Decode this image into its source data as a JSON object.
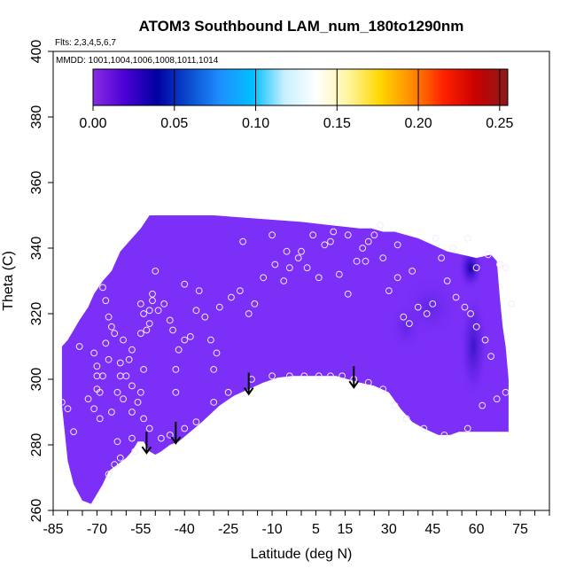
{
  "chart_data": {
    "type": "heatmap",
    "title": "ATOM3 Southbound LAM_num_180to1290nm",
    "subtitle_flights": "Flts: 2,3,4,5,6,7",
    "subtitle_dates": "MMDD: 1001,1004,1006,1008,1011,1014",
    "xlabel": "Latitude (deg N)",
    "ylabel": "Theta (C)",
    "xlim": [
      -85,
      85
    ],
    "ylim": [
      260,
      400
    ],
    "x_tick_labels": [
      "-85",
      "-70",
      "-55",
      "-40",
      "-25",
      "-10",
      "5",
      "15",
      "30",
      "45",
      "60",
      "75"
    ],
    "x_tick_values": [
      -85,
      -70,
      -55,
      -40,
      -25,
      -10,
      5,
      15,
      30,
      45,
      60,
      75
    ],
    "y_tick_labels": [
      "260",
      "280",
      "300",
      "320",
      "340",
      "360",
      "380",
      "400"
    ],
    "y_tick_values": [
      260,
      280,
      300,
      320,
      340,
      360,
      380,
      400
    ],
    "colorbar": {
      "range": [
        0,
        0.255
      ],
      "tick_labels": [
        "0.00",
        "0.05",
        "0.10",
        "0.15",
        "0.20",
        "0.25"
      ],
      "tick_values": [
        0,
        0.05,
        0.1,
        0.15,
        0.2,
        0.25
      ],
      "colors": [
        "#8a2be2",
        "#4b00d6",
        "#0000a0",
        "#0a4cd0",
        "#1e90ff",
        "#00bfff",
        "#c8f0ff",
        "#ffffff",
        "#fff5a0",
        "#ffd700",
        "#ff8c00",
        "#ff2000",
        "#c80000",
        "#8b1a1a"
      ]
    },
    "field_fill_color": "#7b2ff7",
    "field_boundary_lower": [
      [
        -82,
        292
      ],
      [
        -80,
        275
      ],
      [
        -78,
        268
      ],
      [
        -75,
        263
      ],
      [
        -72,
        262
      ],
      [
        -70,
        265
      ],
      [
        -68,
        268
      ],
      [
        -66,
        272
      ],
      [
        -63,
        274
      ],
      [
        -60,
        276
      ],
      [
        -58,
        278
      ],
      [
        -56,
        281
      ],
      [
        -54,
        281
      ],
      [
        -52,
        278
      ],
      [
        -50,
        277
      ],
      [
        -48,
        278
      ],
      [
        -45,
        280
      ],
      [
        -42,
        281
      ],
      [
        -38,
        284
      ],
      [
        -34,
        287
      ],
      [
        -28,
        292
      ],
      [
        -23,
        295
      ],
      [
        -18,
        297
      ],
      [
        -13,
        299
      ],
      [
        -8,
        300.5
      ],
      [
        -3,
        301
      ],
      [
        2,
        301
      ],
      [
        7,
        301
      ],
      [
        12,
        301
      ],
      [
        16,
        300
      ],
      [
        20,
        299
      ],
      [
        25,
        298
      ],
      [
        30,
        296
      ],
      [
        34,
        291
      ],
      [
        38,
        287
      ],
      [
        42,
        285
      ],
      [
        47,
        283
      ],
      [
        51,
        283
      ],
      [
        54,
        284
      ],
      [
        58,
        284
      ],
      [
        63,
        284
      ],
      [
        68,
        284
      ],
      [
        71,
        284
      ]
    ],
    "field_boundary_upper": [
      [
        71,
        300
      ],
      [
        70,
        310
      ],
      [
        69,
        316
      ],
      [
        68,
        325
      ],
      [
        67,
        336
      ],
      [
        65,
        338
      ],
      [
        60,
        337
      ],
      [
        55,
        338
      ],
      [
        50,
        339
      ],
      [
        45,
        341
      ],
      [
        40,
        343
      ],
      [
        36,
        344
      ],
      [
        32,
        345
      ],
      [
        28,
        345
      ],
      [
        24,
        346
      ],
      [
        20,
        346
      ],
      [
        10,
        347
      ],
      [
        0,
        348
      ],
      [
        -15,
        349
      ],
      [
        -30,
        350
      ],
      [
        -45,
        350
      ],
      [
        -52,
        350
      ],
      [
        -55,
        346
      ],
      [
        -59,
        342
      ],
      [
        -62,
        339
      ],
      [
        -65,
        333
      ],
      [
        -68,
        330
      ],
      [
        -71,
        326
      ],
      [
        -73,
        322
      ],
      [
        -76,
        318
      ],
      [
        -78,
        315
      ],
      [
        -80,
        312
      ],
      [
        -82,
        310
      ]
    ],
    "high_value_regions": [
      {
        "center": [
          58,
          334
        ],
        "peak": 0.05
      },
      {
        "center": [
          59,
          310
        ],
        "peak": 0.035
      },
      {
        "center": [
          44,
          322
        ],
        "peak": 0.02
      },
      {
        "center": [
          36,
          316
        ],
        "peak": 0.015
      }
    ],
    "sample_points": [
      [
        -82,
        293
      ],
      [
        -80,
        291
      ],
      [
        -78,
        284
      ],
      [
        -76,
        310
      ],
      [
        -73,
        294
      ],
      [
        -71,
        291
      ],
      [
        -70,
        304
      ],
      [
        -71,
        308
      ],
      [
        -70,
        301
      ],
      [
        -69,
        296
      ],
      [
        -69,
        288
      ],
      [
        -68,
        301
      ],
      [
        -67,
        311
      ],
      [
        -66,
        306
      ],
      [
        -66,
        319
      ],
      [
        -68,
        328
      ],
      [
        -67,
        324
      ],
      [
        -65,
        316
      ],
      [
        -64,
        314
      ],
      [
        -62,
        305
      ],
      [
        -61,
        312
      ],
      [
        -61,
        294
      ],
      [
        -59,
        306
      ],
      [
        -58,
        309
      ],
      [
        -60,
        301
      ],
      [
        -62,
        301
      ],
      [
        -63,
        296
      ],
      [
        -58,
        298
      ],
      [
        -56,
        293
      ],
      [
        -55,
        296
      ],
      [
        -54,
        303
      ],
      [
        -53,
        315
      ],
      [
        -52,
        317
      ],
      [
        -55,
        314
      ],
      [
        -55,
        323
      ],
      [
        -54,
        320
      ],
      [
        -52,
        321
      ],
      [
        -51,
        326
      ],
      [
        -51,
        324
      ],
      [
        -49,
        321
      ],
      [
        -47,
        323
      ],
      [
        -45,
        318
      ],
      [
        -43,
        303
      ],
      [
        -44,
        315
      ],
      [
        -42,
        309
      ],
      [
        -40,
        312
      ],
      [
        -38,
        313
      ],
      [
        -36,
        321
      ],
      [
        -33,
        319
      ],
      [
        -31,
        312
      ],
      [
        -29,
        308
      ],
      [
        -28,
        322
      ],
      [
        -24,
        325
      ],
      [
        -21,
        327
      ],
      [
        -18,
        320
      ],
      [
        -16,
        323
      ],
      [
        -13,
        331
      ],
      [
        -9,
        335
      ],
      [
        -6,
        330
      ],
      [
        -4,
        334
      ],
      [
        -1,
        337
      ],
      [
        2,
        334
      ],
      [
        6,
        331
      ],
      [
        8,
        341
      ],
      [
        11,
        345
      ],
      [
        13,
        332
      ],
      [
        16,
        326
      ],
      [
        19,
        336
      ],
      [
        21,
        340
      ],
      [
        23,
        342
      ],
      [
        25,
        344
      ],
      [
        28,
        337
      ],
      [
        30,
        327
      ],
      [
        33,
        331
      ],
      [
        35,
        319
      ],
      [
        37,
        317
      ],
      [
        40,
        322
      ],
      [
        43,
        320
      ],
      [
        45,
        323
      ],
      [
        48,
        337
      ],
      [
        50,
        330
      ],
      [
        53,
        325
      ],
      [
        56,
        322
      ],
      [
        58,
        320
      ],
      [
        60,
        316
      ],
      [
        63,
        312
      ],
      [
        65,
        307
      ],
      [
        68,
        335
      ],
      [
        70,
        334
      ],
      [
        72,
        323
      ],
      [
        -64,
        274
      ],
      [
        -66,
        271
      ],
      [
        -63,
        281
      ],
      [
        -62,
        276
      ],
      [
        -58,
        282
      ],
      [
        -57,
        278
      ],
      [
        -54,
        288
      ],
      [
        -52,
        285
      ],
      [
        -48,
        282
      ],
      [
        -45,
        283
      ],
      [
        -40,
        285
      ],
      [
        -36,
        287
      ],
      [
        -30,
        293
      ],
      [
        -25,
        296
      ],
      [
        -17,
        300
      ],
      [
        -10,
        301
      ],
      [
        -4,
        301
      ],
      [
        1,
        301
      ],
      [
        6,
        301
      ],
      [
        10,
        301
      ],
      [
        14,
        301
      ],
      [
        18,
        300
      ],
      [
        23,
        299
      ],
      [
        28,
        297
      ],
      [
        32,
        292
      ],
      [
        36,
        288
      ],
      [
        42,
        285
      ],
      [
        49,
        283
      ],
      [
        57,
        285
      ],
      [
        62,
        292
      ],
      [
        67,
        294
      ],
      [
        70,
        296
      ],
      [
        -30,
        303
      ],
      [
        -40,
        329
      ],
      [
        -50,
        333
      ],
      [
        -35,
        327
      ],
      [
        -70,
        297
      ],
      [
        -65,
        290
      ],
      [
        -58,
        290
      ],
      [
        -43,
        296
      ],
      [
        -20,
        342
      ],
      [
        -10,
        344
      ],
      [
        -5,
        339
      ],
      [
        0,
        339
      ],
      [
        4,
        344
      ],
      [
        10,
        342
      ],
      [
        16,
        344
      ],
      [
        22,
        336
      ],
      [
        27,
        347
      ],
      [
        33,
        341
      ],
      [
        38,
        333
      ],
      [
        46,
        343
      ],
      [
        52,
        340
      ],
      [
        57,
        343
      ],
      [
        60,
        334
      ],
      [
        64,
        338
      ]
    ],
    "arrows": [
      [
        -53,
        284
      ],
      [
        -43,
        287
      ],
      [
        -18,
        302
      ],
      [
        18,
        304
      ]
    ],
    "arrow_length_deg": 7
  }
}
